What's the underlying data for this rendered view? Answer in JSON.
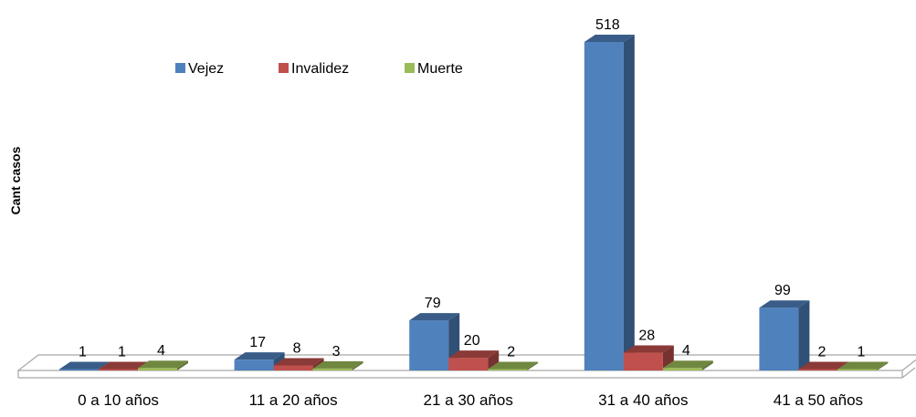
{
  "chart_data": {
    "type": "bar",
    "title": "",
    "xlabel": "",
    "ylabel": "Cant casos",
    "categories": [
      "0 a 10 años",
      "11 a 20 años",
      "21 a 30 años",
      "31 a 40 años",
      "41 a 50 años"
    ],
    "series": [
      {
        "name": "Vejez",
        "values": [
          1,
          17,
          79,
          518,
          99
        ],
        "color": "#4f81bd"
      },
      {
        "name": "Invalidez",
        "values": [
          1,
          8,
          20,
          28,
          2
        ],
        "color": "#c0504d"
      },
      {
        "name": "Muerte",
        "values": [
          4,
          3,
          2,
          4,
          1
        ],
        "color": "#9bbb59"
      }
    ],
    "ylim": [
      0,
      518
    ],
    "grid": false,
    "legend_position": "top",
    "style": "3d-clustered-column"
  }
}
